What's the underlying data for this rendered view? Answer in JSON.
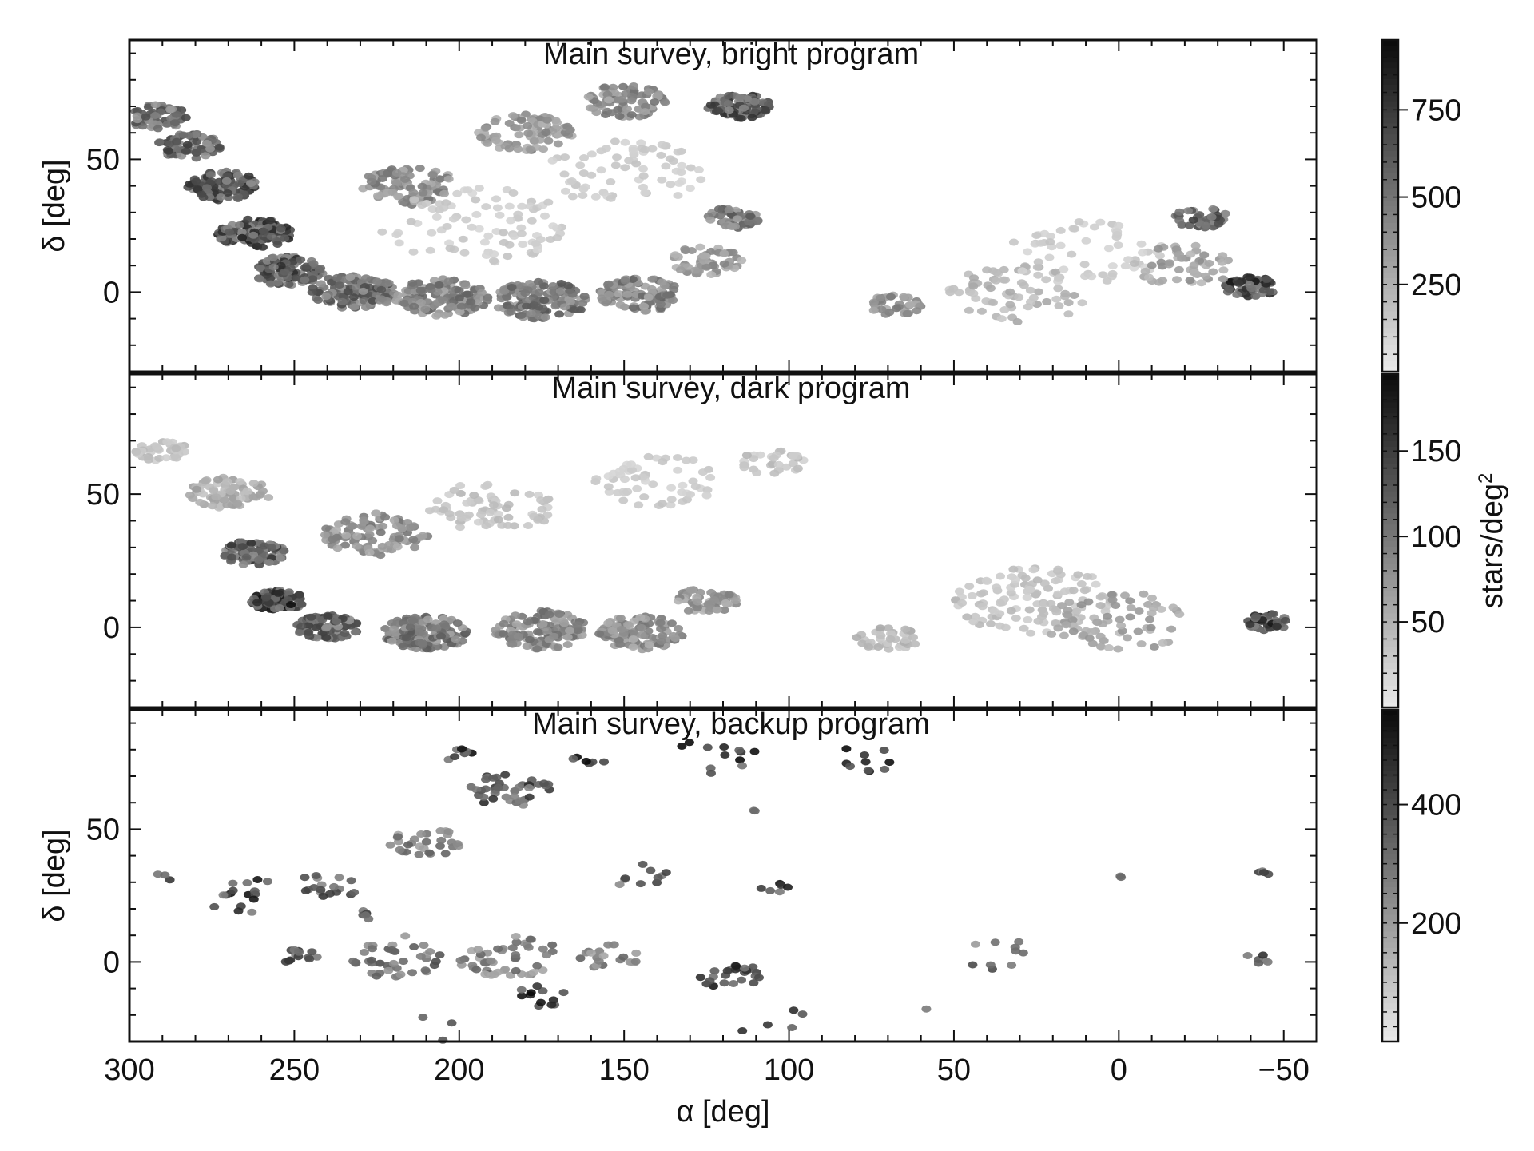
{
  "chart_data": [
    {
      "type": "heatmap",
      "title": "Main survey, bright program",
      "xlabel": "α [deg]",
      "ylabel": "δ [deg]",
      "xlim": [
        300,
        -60
      ],
      "ylim": [
        -30,
        95
      ],
      "xticks": [
        300,
        250,
        200,
        150,
        100,
        50,
        0,
        -50
      ],
      "xtick_labels": [
        "300",
        "250",
        "200",
        "150",
        "100",
        "50",
        "0",
        "−50"
      ],
      "yticks": [
        0,
        50
      ],
      "ytick_labels": [
        "0",
        "50"
      ],
      "colorbar": {
        "label": "",
        "ticks": [
          250,
          500,
          750
        ],
        "tick_labels": [
          "250",
          "500",
          "750"
        ],
        "range": [
          0,
          950
        ],
        "cmap": "gray_r"
      },
      "clusters": [
        {
          "ra": 292,
          "dec": 66,
          "value": 600,
          "spread": 6,
          "count": 60
        },
        {
          "ra": 282,
          "dec": 55,
          "value": 650,
          "spread": 6,
          "count": 70
        },
        {
          "ra": 272,
          "dec": 40,
          "value": 700,
          "spread": 7,
          "count": 100
        },
        {
          "ra": 262,
          "dec": 22,
          "value": 750,
          "spread": 7,
          "count": 110
        },
        {
          "ra": 252,
          "dec": 8,
          "value": 700,
          "spread": 7,
          "count": 100
        },
        {
          "ra": 232,
          "dec": 0,
          "value": 600,
          "spread": 8,
          "count": 120
        },
        {
          "ra": 205,
          "dec": -2,
          "value": 500,
          "spread": 9,
          "count": 130
        },
        {
          "ra": 175,
          "dec": -3,
          "value": 550,
          "spread": 9,
          "count": 130
        },
        {
          "ra": 145,
          "dec": -1,
          "value": 500,
          "spread": 8,
          "count": 110
        },
        {
          "ra": 125,
          "dec": 12,
          "value": 400,
          "spread": 7,
          "count": 60
        },
        {
          "ra": 117,
          "dec": 28,
          "value": 550,
          "spread": 5,
          "count": 50
        },
        {
          "ra": 215,
          "dec": 40,
          "value": 450,
          "spread": 9,
          "count": 100
        },
        {
          "ra": 180,
          "dec": 60,
          "value": 400,
          "spread": 9,
          "count": 90
        },
        {
          "ra": 150,
          "dec": 72,
          "value": 450,
          "spread": 8,
          "count": 80
        },
        {
          "ra": 115,
          "dec": 70,
          "value": 700,
          "spread": 6,
          "count": 80
        },
        {
          "ra": 195,
          "dec": 25,
          "value": 150,
          "spread": 18,
          "count": 90
        },
        {
          "ra": 150,
          "dec": 45,
          "value": 150,
          "spread": 15,
          "count": 70
        },
        {
          "ra": 68,
          "dec": -5,
          "value": 450,
          "spread": 5,
          "count": 40
        },
        {
          "ra": 30,
          "dec": 0,
          "value": 250,
          "spread": 14,
          "count": 70
        },
        {
          "ra": 10,
          "dec": 15,
          "value": 150,
          "spread": 15,
          "count": 60
        },
        {
          "ra": -25,
          "dec": 28,
          "value": 650,
          "spread": 5,
          "count": 40
        },
        {
          "ra": -40,
          "dec": 2,
          "value": 800,
          "spread": 5,
          "count": 60
        },
        {
          "ra": -20,
          "dec": 10,
          "value": 350,
          "spread": 10,
          "count": 50
        }
      ]
    },
    {
      "type": "heatmap",
      "title": "Main survey, dark program",
      "xlabel": "α [deg]",
      "ylabel": "",
      "xlim": [
        300,
        -60
      ],
      "ylim": [
        -30,
        95
      ],
      "xticks": [
        300,
        250,
        200,
        150,
        100,
        50,
        0,
        -50
      ],
      "xtick_labels": [
        "300",
        "250",
        "200",
        "150",
        "100",
        "50",
        "0",
        "−50"
      ],
      "yticks": [
        0,
        50
      ],
      "ytick_labels": [
        "0",
        "50"
      ],
      "colorbar": {
        "label": "stars/deg2",
        "ticks": [
          50,
          100,
          150
        ],
        "tick_labels": [
          "50",
          "100",
          "150"
        ],
        "range": [
          0,
          195
        ],
        "cmap": "gray_r"
      },
      "clusters": [
        {
          "ra": 290,
          "dec": 66,
          "value": 40,
          "spread": 5,
          "count": 40
        },
        {
          "ra": 270,
          "dec": 50,
          "value": 60,
          "spread": 8,
          "count": 80
        },
        {
          "ra": 262,
          "dec": 28,
          "value": 140,
          "spread": 6,
          "count": 100
        },
        {
          "ra": 255,
          "dec": 10,
          "value": 170,
          "spread": 5,
          "count": 90
        },
        {
          "ra": 240,
          "dec": 0,
          "value": 130,
          "spread": 6,
          "count": 90
        },
        {
          "ra": 210,
          "dec": -2,
          "value": 110,
          "spread": 8,
          "count": 130
        },
        {
          "ra": 175,
          "dec": -1,
          "value": 100,
          "spread": 9,
          "count": 130
        },
        {
          "ra": 145,
          "dec": -2,
          "value": 90,
          "spread": 8,
          "count": 110
        },
        {
          "ra": 125,
          "dec": 10,
          "value": 80,
          "spread": 6,
          "count": 60
        },
        {
          "ra": 225,
          "dec": 35,
          "value": 90,
          "spread": 10,
          "count": 100
        },
        {
          "ra": 190,
          "dec": 45,
          "value": 40,
          "spread": 12,
          "count": 70
        },
        {
          "ra": 140,
          "dec": 55,
          "value": 30,
          "spread": 12,
          "count": 60
        },
        {
          "ra": 105,
          "dec": 62,
          "value": 40,
          "spread": 6,
          "count": 30
        },
        {
          "ra": 70,
          "dec": -4,
          "value": 50,
          "spread": 6,
          "count": 40
        },
        {
          "ra": 25,
          "dec": 10,
          "value": 40,
          "spread": 16,
          "count": 120
        },
        {
          "ra": 0,
          "dec": 2,
          "value": 70,
          "spread": 14,
          "count": 70
        },
        {
          "ra": -45,
          "dec": 2,
          "value": 160,
          "spread": 4,
          "count": 40
        }
      ]
    },
    {
      "type": "heatmap",
      "title": "Main survey, backup program",
      "xlabel": "α [deg]",
      "ylabel": "δ [deg]",
      "xlim": [
        300,
        -60
      ],
      "ylim": [
        -30,
        95
      ],
      "xticks": [
        300,
        250,
        200,
        150,
        100,
        50,
        0,
        -50
      ],
      "xtick_labels": [
        "300",
        "250",
        "200",
        "150",
        "100",
        "50",
        "0",
        "−50"
      ],
      "yticks": [
        0,
        50
      ],
      "ytick_labels": [
        "0",
        "50"
      ],
      "colorbar": {
        "label": "",
        "ticks": [
          200,
          400
        ],
        "tick_labels": [
          "200",
          "400"
        ],
        "range": [
          0,
          560
        ],
        "cmap": "gray_r"
      },
      "clusters": [
        {
          "ra": 290,
          "dec": 32,
          "value": 500,
          "spread": 2,
          "count": 3
        },
        {
          "ra": 265,
          "dec": 25,
          "value": 480,
          "spread": 8,
          "count": 16
        },
        {
          "ra": 240,
          "dec": 28,
          "value": 400,
          "spread": 7,
          "count": 18
        },
        {
          "ra": 230,
          "dec": 18,
          "value": 420,
          "spread": 4,
          "count": 6
        },
        {
          "ra": 248,
          "dec": 2,
          "value": 480,
          "spread": 4,
          "count": 14
        },
        {
          "ra": 210,
          "dec": 45,
          "value": 300,
          "spread": 7,
          "count": 30
        },
        {
          "ra": 185,
          "dec": 65,
          "value": 420,
          "spread": 8,
          "count": 40
        },
        {
          "ra": 200,
          "dec": 78,
          "value": 500,
          "spread": 3,
          "count": 8
        },
        {
          "ra": 160,
          "dec": 77,
          "value": 520,
          "spread": 4,
          "count": 6
        },
        {
          "ra": 125,
          "dec": 79,
          "value": 540,
          "spread": 10,
          "count": 12
        },
        {
          "ra": 75,
          "dec": 77,
          "value": 540,
          "spread": 8,
          "count": 10
        },
        {
          "ra": 220,
          "dec": 2,
          "value": 350,
          "spread": 10,
          "count": 40
        },
        {
          "ra": 185,
          "dec": 2,
          "value": 300,
          "spread": 10,
          "count": 50
        },
        {
          "ra": 155,
          "dec": 2,
          "value": 300,
          "spread": 6,
          "count": 20
        },
        {
          "ra": 118,
          "dec": -5,
          "value": 480,
          "spread": 6,
          "count": 25
        },
        {
          "ra": 175,
          "dec": -13,
          "value": 500,
          "spread": 5,
          "count": 12
        },
        {
          "ra": 145,
          "dec": 32,
          "value": 420,
          "spread": 6,
          "count": 10
        },
        {
          "ra": 105,
          "dec": 28,
          "value": 480,
          "spread": 3,
          "count": 6
        },
        {
          "ra": 110,
          "dec": 57,
          "value": 520,
          "spread": 1,
          "count": 2
        },
        {
          "ra": 100,
          "dec": -25,
          "value": 520,
          "spread": 10,
          "count": 6
        },
        {
          "ra": 210,
          "dec": -27,
          "value": 520,
          "spread": 8,
          "count": 3
        },
        {
          "ra": 35,
          "dec": 2,
          "value": 350,
          "spread": 8,
          "count": 10
        },
        {
          "ra": 0,
          "dec": 32,
          "value": 480,
          "spread": 1,
          "count": 2
        },
        {
          "ra": -42,
          "dec": 1,
          "value": 480,
          "spread": 3,
          "count": 6
        },
        {
          "ra": -43,
          "dec": 34,
          "value": 500,
          "spread": 2,
          "count": 4
        },
        {
          "ra": 58,
          "dec": -17,
          "value": 480,
          "spread": 1,
          "count": 1
        }
      ]
    }
  ]
}
